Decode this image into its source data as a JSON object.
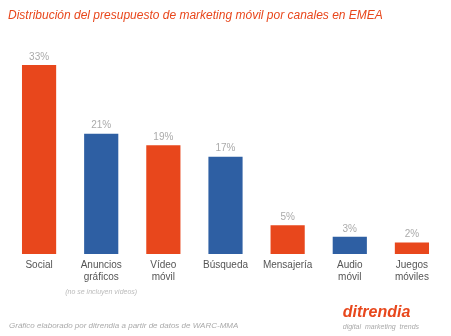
{
  "chart_data": {
    "type": "bar",
    "title": "Distribución del presupuesto de marketing móvil por canales en EMEA",
    "categories": [
      "Social",
      "Anuncios\ngráficos",
      "Vídeo\nmóvil",
      "Búsqueda",
      "Mensajería",
      "Audio\nmóvil",
      "Juegos\nmóviles"
    ],
    "values": [
      33,
      21,
      19,
      17,
      5,
      3,
      2
    ],
    "value_labels": [
      "33%",
      "21%",
      "19%",
      "17%",
      "5%",
      "3%",
      "2%"
    ],
    "colors": [
      "#E8471C",
      "#2E5FA3",
      "#E8471C",
      "#2E5FA3",
      "#E8471C",
      "#2E5FA3",
      "#E8471C"
    ],
    "ylim": [
      0,
      38
    ],
    "grid": false,
    "data_labels": true,
    "tick_labels": "x",
    "annotations": [
      {
        "text": "(no se incluyen vídeos)",
        "x": "Anuncios\ngráficos"
      },
      {
        "text": "Gráfico elaborado por ditrendia a partir de datos de WARC-MMA"
      },
      {
        "text": "ditrendia"
      },
      {
        "text": "digital  marketing  trends"
      }
    ]
  }
}
